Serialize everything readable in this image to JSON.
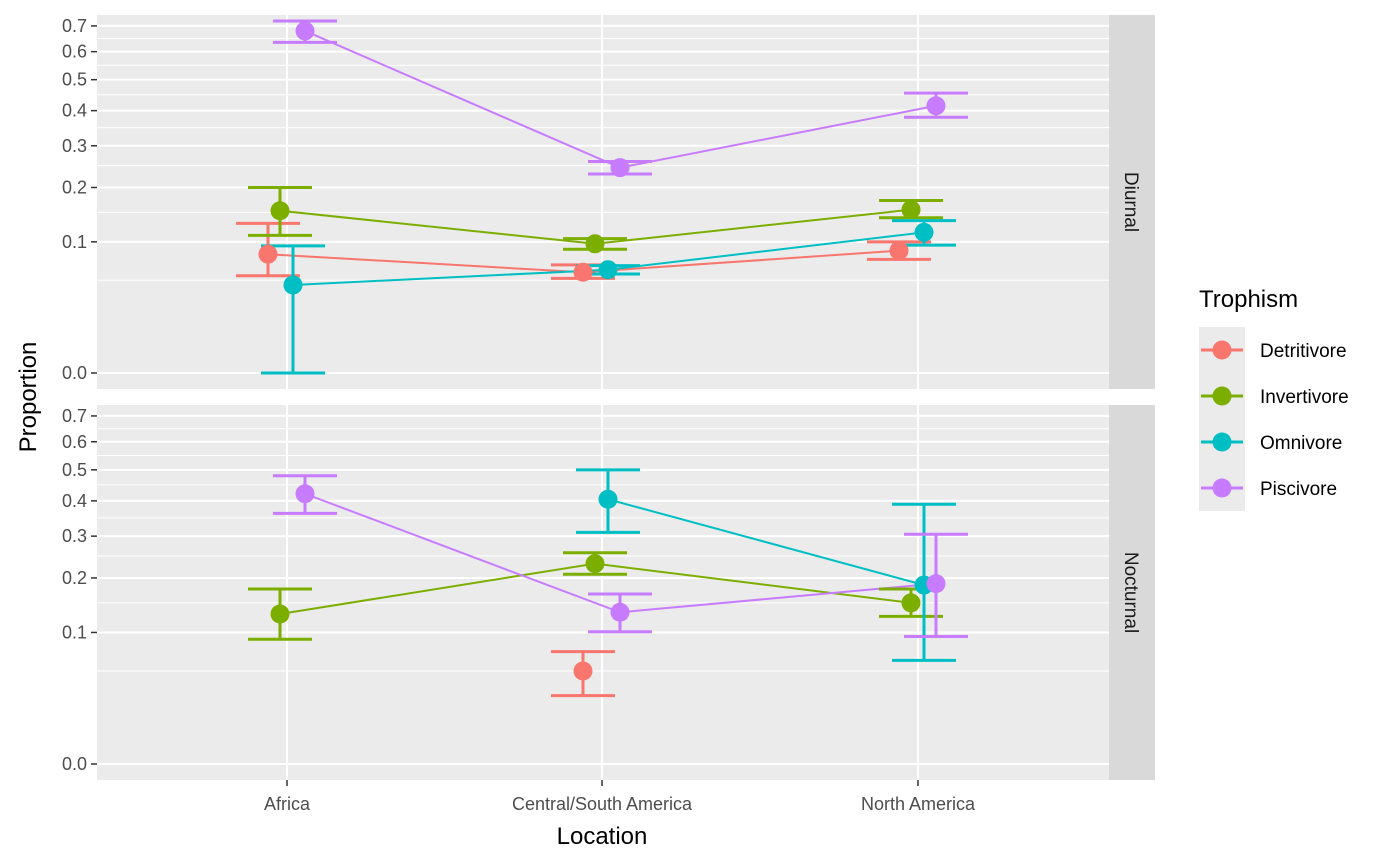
{
  "chart_data": {
    "type": "line",
    "xlabel": "Location",
    "ylabel": "Proportion",
    "categories": [
      "Africa",
      "Central/South America",
      "North America"
    ],
    "y_scale": "sqrt",
    "ylim": [
      0,
      0.72
    ],
    "yticks": [
      0.0,
      0.1,
      0.2,
      0.3,
      0.4,
      0.5,
      0.6,
      0.7
    ],
    "ytick_labels": [
      "0.0",
      "0.1",
      "0.2",
      "0.3",
      "0.4",
      "0.5",
      "0.6",
      "0.7"
    ],
    "grid": true,
    "legend": {
      "title": "Trophism",
      "placement": "right",
      "entries": [
        "Detritivore",
        "Invertivore",
        "Omnivore",
        "Piscivore"
      ]
    },
    "series_colors": {
      "Detritivore": "#F8766D",
      "Invertivore": "#7CAE00",
      "Omnivore": "#00BFC4",
      "Piscivore": "#C77CFF"
    },
    "panels": [
      {
        "label": "Diurnal",
        "series": [
          {
            "name": "Detritivore",
            "values": [
              0.082,
              0.059,
              0.087
            ],
            "lower": [
              0.055,
              0.052,
              0.075
            ],
            "upper": [
              0.13,
              0.068,
              0.1
            ]
          },
          {
            "name": "Invertivore",
            "values": [
              0.153,
              0.097,
              0.155
            ],
            "lower": [
              0.11,
              0.089,
              0.14
            ],
            "upper": [
              0.2,
              0.105,
              0.173
            ]
          },
          {
            "name": "Omnivore",
            "values": [
              0.045,
              0.062,
              0.115
            ],
            "lower": [
              0.0,
              0.057,
              0.095
            ],
            "upper": [
              0.094,
              0.067,
              0.135
            ]
          },
          {
            "name": "Piscivore",
            "values": [
              0.68,
              0.245,
              0.415
            ],
            "lower": [
              0.635,
              0.23,
              0.38
            ],
            "upper": [
              0.72,
              0.26,
              0.455
            ]
          }
        ]
      },
      {
        "label": "Nocturnal",
        "series": [
          {
            "name": "Detritivore",
            "values": [
              null,
              0.05,
              null
            ],
            "lower": [
              null,
              0.027,
              null
            ],
            "upper": [
              null,
              0.073,
              null
            ]
          },
          {
            "name": "Invertivore",
            "values": [
              0.13,
              0.232,
              0.15
            ],
            "lower": [
              0.09,
              0.208,
              0.126
            ],
            "upper": [
              0.177,
              0.258,
              0.177
            ]
          },
          {
            "name": "Omnivore",
            "values": [
              null,
              0.405,
              0.185
            ],
            "lower": [
              null,
              0.31,
              0.062
            ],
            "upper": [
              null,
              0.5,
              0.39
            ]
          },
          {
            "name": "Piscivore",
            "values": [
              0.422,
              0.133,
              0.188
            ],
            "lower": [
              0.363,
              0.101,
              0.094
            ],
            "upper": [
              0.48,
              0.167,
              0.305
            ]
          }
        ]
      }
    ]
  }
}
